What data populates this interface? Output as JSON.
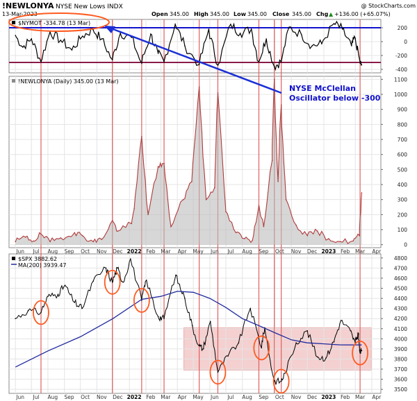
{
  "header": {
    "symbol": "!NEWLONYA",
    "description": "NYSE New Lows INDX",
    "date": "13-Mar-2023",
    "open_label": "Open",
    "open": "345.00",
    "high_label": "High",
    "high": "345.00",
    "low_label": "Low",
    "low": "345.00",
    "close_label": "Close",
    "close": "345.00",
    "chg_label": "Chg",
    "chg": "+136.00 (+65.07%)",
    "chg_arrow": "▲",
    "copyright": "@ StockCharts.com"
  },
  "annotation": {
    "line1": "NYSE McClellan",
    "line2": "Oscillator below -300"
  },
  "colors": {
    "price": "#000000",
    "ma": "#1f2a9e",
    "mcclellan_ref": "#1010cc",
    "threshold": "#8b1a4a",
    "new_lows": "#b03a3a",
    "event_lines": "#e06060",
    "circles": "#ff5a1f",
    "arrow": "#1a2fd6",
    "zone": "#f2c8c8",
    "annotation_text": "#1010cc"
  },
  "x_axis": {
    "labels": [
      "Jun",
      "Jul",
      "Aug",
      "Sep",
      "Oct",
      "Nov",
      "Dec",
      "2022",
      "Feb",
      "Mar",
      "Apr",
      "May",
      "Jun",
      "Jul",
      "Aug",
      "Sep",
      "Oct",
      "Nov",
      "Dec",
      "2023",
      "Feb",
      "Mar",
      "Apr"
    ]
  },
  "event_lines_dates": [
    "2021-07-19",
    "2021-11-30",
    "2022-01-24",
    "2022-03-07",
    "2022-05-12",
    "2022-06-16",
    "2022-09-01",
    "2022-09-30",
    "2022-10-13",
    "2023-03-10"
  ],
  "chart_data": [
    {
      "type": "line",
      "panel": "top",
      "legend": "$NYMOT -334.78 (13 Mar)",
      "series": [
        {
          "name": "$NYMOT",
          "last": -334.78
        }
      ],
      "reference_lines": [
        200,
        -300
      ],
      "yticks": [
        200,
        0,
        -200,
        -400
      ],
      "ylim": [
        -450,
        320
      ],
      "grid": true,
      "points": [
        [
          "2021-06-01",
          90
        ],
        [
          "2021-06-15",
          -80
        ],
        [
          "2021-07-01",
          40
        ],
        [
          "2021-07-19",
          -290
        ],
        [
          "2021-08-05",
          140
        ],
        [
          "2021-08-25",
          20
        ],
        [
          "2021-09-15",
          -120
        ],
        [
          "2021-10-05",
          80
        ],
        [
          "2021-10-25",
          170
        ],
        [
          "2021-11-10",
          40
        ],
        [
          "2021-11-30",
          -260
        ],
        [
          "2021-12-15",
          120
        ],
        [
          "2022-01-05",
          60
        ],
        [
          "2022-01-24",
          -310
        ],
        [
          "2022-02-10",
          110
        ],
        [
          "2022-02-24",
          -170
        ],
        [
          "2022-03-07",
          -290
        ],
        [
          "2022-03-28",
          250
        ],
        [
          "2022-04-15",
          -60
        ],
        [
          "2022-05-12",
          -330
        ],
        [
          "2022-05-30",
          180
        ],
        [
          "2022-06-16",
          -340
        ],
        [
          "2022-07-10",
          250
        ],
        [
          "2022-07-28",
          120
        ],
        [
          "2022-08-18",
          180
        ],
        [
          "2022-09-01",
          -290
        ],
        [
          "2022-09-15",
          40
        ],
        [
          "2022-09-30",
          -360
        ],
        [
          "2022-10-13",
          -290
        ],
        [
          "2022-10-28",
          210
        ],
        [
          "2022-11-20",
          100
        ],
        [
          "2022-12-10",
          -60
        ],
        [
          "2022-12-28",
          -30
        ],
        [
          "2023-01-20",
          260
        ],
        [
          "2023-02-05",
          180
        ],
        [
          "2023-02-22",
          -60
        ],
        [
          "2023-03-01",
          50
        ],
        [
          "2023-03-10",
          -300
        ],
        [
          "2023-03-13",
          -334.78
        ]
      ]
    },
    {
      "type": "area",
      "panel": "middle",
      "legend": "!NEWLONYA (Daily) 345.00 (13 Mar)",
      "series": [
        {
          "name": "!NEWLONYA",
          "last": 345
        }
      ],
      "yticks": [
        0,
        100,
        200,
        300,
        400,
        500,
        600,
        700,
        800,
        900,
        1000,
        1100
      ],
      "ylim": [
        -20,
        1120
      ],
      "grid": true,
      "points": [
        [
          "2021-06-01",
          20
        ],
        [
          "2021-06-20",
          50
        ],
        [
          "2021-07-05",
          25
        ],
        [
          "2021-07-19",
          70
        ],
        [
          "2021-08-05",
          20
        ],
        [
          "2021-08-25",
          45
        ],
        [
          "2021-09-20",
          80
        ],
        [
          "2021-10-05",
          60
        ],
        [
          "2021-10-25",
          20
        ],
        [
          "2021-11-10",
          35
        ],
        [
          "2021-11-30",
          160
        ],
        [
          "2021-12-10",
          90
        ],
        [
          "2022-01-05",
          140
        ],
        [
          "2022-01-10",
          240
        ],
        [
          "2022-01-24",
          720
        ],
        [
          "2022-02-05",
          200
        ],
        [
          "2022-02-24",
          520
        ],
        [
          "2022-03-07",
          540
        ],
        [
          "2022-03-20",
          120
        ],
        [
          "2022-04-12",
          300
        ],
        [
          "2022-04-28",
          420
        ],
        [
          "2022-05-12",
          1050
        ],
        [
          "2022-05-25",
          300
        ],
        [
          "2022-06-10",
          380
        ],
        [
          "2022-06-16",
          1010
        ],
        [
          "2022-07-01",
          220
        ],
        [
          "2022-07-20",
          80
        ],
        [
          "2022-08-05",
          40
        ],
        [
          "2022-08-20",
          30
        ],
        [
          "2022-09-01",
          260
        ],
        [
          "2022-09-10",
          120
        ],
        [
          "2022-09-26",
          560
        ],
        [
          "2022-09-30",
          1100
        ],
        [
          "2022-10-07",
          420
        ],
        [
          "2022-10-13",
          930
        ],
        [
          "2022-10-22",
          300
        ],
        [
          "2022-11-10",
          130
        ],
        [
          "2022-12-01",
          60
        ],
        [
          "2022-12-20",
          90
        ],
        [
          "2023-01-10",
          40
        ],
        [
          "2023-02-01",
          20
        ],
        [
          "2023-02-25",
          25
        ],
        [
          "2023-03-09",
          60
        ],
        [
          "2023-03-13",
          345
        ]
      ]
    },
    {
      "type": "line",
      "panel": "bottom",
      "legend": [
        {
          "name": "$SPX",
          "text": "$SPX 3882.62"
        },
        {
          "name": "MA(200)",
          "text": "MA(200) 3939.47"
        }
      ],
      "series": [
        {
          "name": "$SPX",
          "last": 3882.62,
          "points": [
            [
              "2021-06-01",
              4200
            ],
            [
              "2021-06-25",
              4280
            ],
            [
              "2021-07-19",
              4260
            ],
            [
              "2021-08-01",
              4420
            ],
            [
              "2021-08-20",
              4440
            ],
            [
              "2021-09-02",
              4530
            ],
            [
              "2021-09-20",
              4360
            ],
            [
              "2021-10-04",
              4300
            ],
            [
              "2021-10-25",
              4570
            ],
            [
              "2021-11-18",
              4700
            ],
            [
              "2021-11-30",
              4560
            ],
            [
              "2021-12-10",
              4700
            ],
            [
              "2021-12-20",
              4560
            ],
            [
              "2022-01-03",
              4790
            ],
            [
              "2022-01-24",
              4380
            ],
            [
              "2022-02-02",
              4580
            ],
            [
              "2022-02-24",
              4220
            ],
            [
              "2022-03-07",
              4200
            ],
            [
              "2022-03-29",
              4630
            ],
            [
              "2022-04-15",
              4400
            ],
            [
              "2022-04-29",
              4130
            ],
            [
              "2022-05-12",
              3930
            ],
            [
              "2022-05-20",
              3900
            ],
            [
              "2022-06-02",
              4170
            ],
            [
              "2022-06-16",
              3670
            ],
            [
              "2022-07-05",
              3830
            ],
            [
              "2022-07-25",
              3960
            ],
            [
              "2022-08-16",
              4300
            ],
            [
              "2022-09-06",
              3910
            ],
            [
              "2022-09-12",
              4110
            ],
            [
              "2022-09-30",
              3580
            ],
            [
              "2022-10-13",
              3580
            ],
            [
              "2022-10-20",
              3660
            ],
            [
              "2022-11-10",
              3960
            ],
            [
              "2022-12-01",
              4080
            ],
            [
              "2022-12-20",
              3820
            ],
            [
              "2023-01-05",
              3810
            ],
            [
              "2023-01-20",
              3970
            ],
            [
              "2023-02-02",
              4180
            ],
            [
              "2023-02-20",
              4080
            ],
            [
              "2023-03-01",
              3960
            ],
            [
              "2023-03-07",
              4050
            ],
            [
              "2023-03-10",
              3860
            ],
            [
              "2023-03-13",
              3882.62
            ]
          ]
        },
        {
          "name": "MA(200)",
          "last": 3939.47,
          "points": [
            [
              "2021-06-01",
              3720
            ],
            [
              "2021-08-01",
              3880
            ],
            [
              "2021-10-01",
              4020
            ],
            [
              "2021-12-01",
              4200
            ],
            [
              "2022-01-24",
              4390
            ],
            [
              "2022-03-01",
              4420
            ],
            [
              "2022-04-01",
              4470
            ],
            [
              "2022-05-01",
              4460
            ],
            [
              "2022-06-01",
              4400
            ],
            [
              "2022-07-01",
              4310
            ],
            [
              "2022-08-01",
              4200
            ],
            [
              "2022-09-01",
              4130
            ],
            [
              "2022-10-01",
              4060
            ],
            [
              "2022-11-01",
              3990
            ],
            [
              "2022-12-01",
              3960
            ],
            [
              "2023-01-01",
              3950
            ],
            [
              "2023-02-01",
              3940
            ],
            [
              "2023-03-13",
              3939.47
            ]
          ]
        }
      ],
      "yticks": [
        3500,
        3600,
        3700,
        3800,
        3900,
        4000,
        4100,
        4200,
        4300,
        4400,
        4500,
        4600,
        4700,
        4800
      ],
      "ylim": [
        3460,
        4840
      ],
      "grid": true,
      "shaded_zone": {
        "from_date": "2022-04-13",
        "to_date": "2023-03-31",
        "low": 3690,
        "high": 4110
      },
      "circled_dates": [
        "2021-07-19",
        "2021-11-30",
        "2022-01-24",
        "2022-06-16",
        "2022-09-06",
        "2022-10-13",
        "2023-03-10"
      ]
    }
  ]
}
